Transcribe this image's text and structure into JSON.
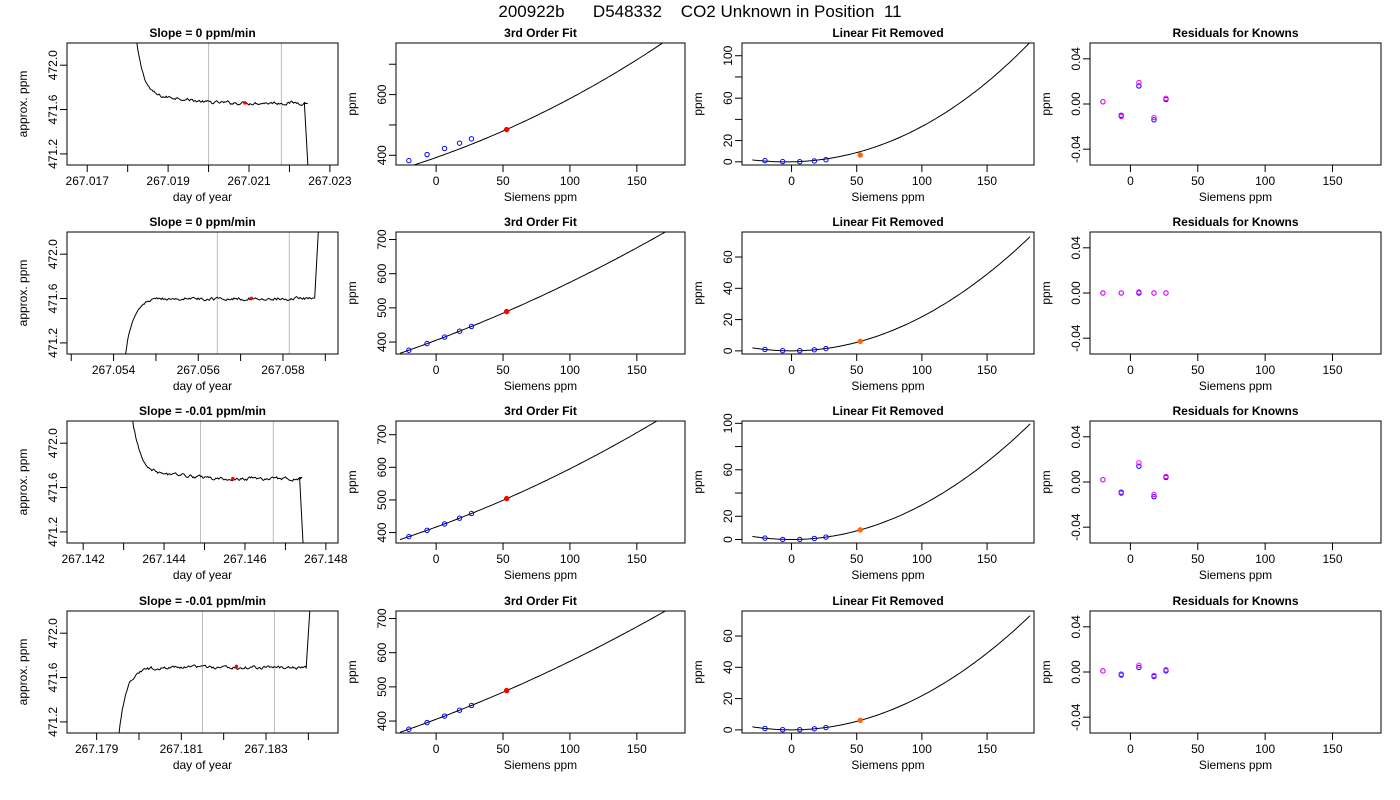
{
  "header": {
    "title": "200922b      D548332    CO2 Unknown in Position  11"
  },
  "colors": {
    "curve": "#000000",
    "known_points": "#0000ff",
    "unknown_point": "#ff0000",
    "unknown_point_residual_panel": "#ff6600",
    "residual_points_a": "#0000ff",
    "residual_points_b": "#ff00ff",
    "vlines": "#bebebe"
  },
  "chart_data": [
    {
      "type": "line",
      "row": 0,
      "col": 0,
      "title": "Slope =  0  ppm/min",
      "xlabel": "day of year",
      "ylabel": "approx. ppm",
      "xlim": [
        267.0165,
        267.0232
      ],
      "ylim": [
        471.1,
        472.2
      ],
      "xticks": [
        267.017,
        267.019,
        267.021,
        267.023
      ],
      "xtick_labels": [
        "267.017",
        "267.019",
        "267.021",
        "267.023"
      ],
      "xminor": [
        267.018,
        267.02,
        267.022
      ],
      "yticks": [
        471.2,
        471.6,
        472.0
      ],
      "ytick_labels": [
        "471.2",
        "471.6",
        "472.0"
      ],
      "vlines": [
        267.02,
        267.0218
      ],
      "marker": {
        "x": 267.0209,
        "y": 471.66
      },
      "trace": {
        "shape": "decay",
        "x_start": 267.0182,
        "x_end": 267.02245,
        "level": 471.66,
        "start_value": 472.25,
        "tau": 0.00022,
        "bump": 0.04,
        "end_drop": {
          "x0": 267.02237,
          "x1": 267.02247,
          "y": 471.0
        }
      }
    },
    {
      "type": "line",
      "row": 0,
      "col": 1,
      "title": "3rd Order Fit",
      "xlabel": "Siemens ppm",
      "ylabel": "ppm",
      "xlim": [
        -30,
        186
      ],
      "ylim": [
        368,
        770
      ],
      "xticks": [
        0,
        50,
        100,
        150
      ],
      "xtick_labels": [
        "0",
        "50",
        "100",
        "150"
      ],
      "yticks": [
        400,
        500,
        600,
        700
      ],
      "ytick_labels": [
        "400",
        "",
        "600",
        ""
      ],
      "curve": {
        "x_from": -27,
        "x_to": 183,
        "coef": [
          392.72,
          1.5548,
          0.003684,
          1.8e-06
        ]
      },
      "known_points": {
        "x": [
          -20.4,
          -6.8,
          6.3,
          17.5,
          26.4
        ],
        "y": [
          382.5,
          402.4,
          422.5,
          440.0,
          454.2
        ]
      },
      "unknown_point": {
        "x": 52.7,
        "y": 484.9
      }
    },
    {
      "type": "line",
      "row": 0,
      "col": 2,
      "title": "Linear Fit Removed",
      "xlabel": "Siemens ppm",
      "ylabel": "ppm",
      "xlim": [
        -38,
        186
      ],
      "ylim": [
        -3,
        112
      ],
      "xticks": [
        0,
        50,
        100,
        150
      ],
      "xtick_labels": [
        "0",
        "50",
        "100",
        "150"
      ],
      "yticks": [
        0,
        20,
        40,
        60,
        80,
        100
      ],
      "ytick_labels": [
        "0",
        "20",
        "",
        "60",
        "",
        "100"
      ],
      "curve": {
        "x_from": -30,
        "x_to": 183,
        "coef": [
          0.0,
          0.025,
          0.0029,
          1.8e-06
        ]
      },
      "known_points": {
        "x": [
          -20.4,
          -6.8,
          6.3,
          17.5,
          26.4
        ],
        "y": [
          1.1,
          0.2,
          0.1,
          0.8,
          2.0
        ]
      },
      "unknown_point": {
        "x": 52.7,
        "y": 6.4
      }
    },
    {
      "type": "scatter",
      "row": 0,
      "col": 3,
      "title": "Residuals for Knowns",
      "xlabel": "Siemens ppm",
      "ylabel": "ppm",
      "xlim": [
        -30,
        186
      ],
      "ylim": [
        -0.054,
        0.054
      ],
      "xticks": [
        0,
        50,
        100,
        150
      ],
      "xtick_labels": [
        "0",
        "50",
        "100",
        "150"
      ],
      "yticks": [
        -0.04,
        0.0,
        0.04
      ],
      "ytick_labels": [
        "-0.04",
        "0.00",
        "0.04"
      ],
      "points_a": {
        "x": [
          -20.4,
          -6.8,
          6.3,
          17.5,
          26.4
        ],
        "y": [
          0.002,
          -0.01,
          0.016,
          -0.014,
          0.004
        ]
      },
      "points_b": {
        "x": [
          -20.4,
          -6.8,
          6.3,
          17.5,
          26.4
        ],
        "y": [
          0.002,
          -0.011,
          0.019,
          -0.012,
          0.005
        ]
      }
    },
    {
      "type": "line",
      "row": 1,
      "col": 0,
      "title": "Slope =  0  ppm/min",
      "xlabel": "day of year",
      "ylabel": "approx. ppm",
      "xlim": [
        267.0529,
        267.0593
      ],
      "ylim": [
        471.1,
        472.2
      ],
      "xticks": [
        267.054,
        267.056,
        267.058
      ],
      "xtick_labels": [
        "267.054",
        "267.056",
        "267.058"
      ],
      "xminor": [
        267.053,
        267.055,
        267.057,
        267.059
      ],
      "yticks": [
        471.2,
        471.6,
        472.0
      ],
      "ytick_labels": [
        "471.2",
        "471.6",
        "472.0"
      ],
      "vlines": [
        267.05645,
        267.05815
      ],
      "marker": {
        "x": 267.05725,
        "y": 471.6
      },
      "trace": {
        "shape": "rise",
        "x_start": 267.05425,
        "x_end": 267.05875,
        "level": 471.6,
        "start_value": 471.0,
        "tau": 0.00018,
        "bump": 0.0,
        "end_rise": {
          "x0": 267.05875,
          "x1": 267.05885,
          "y": 472.3
        }
      }
    },
    {
      "type": "line",
      "row": 1,
      "col": 1,
      "title": "3rd Order Fit",
      "xlabel": "Siemens ppm",
      "ylabel": "ppm",
      "xlim": [
        -30,
        186
      ],
      "ylim": [
        365,
        722
      ],
      "xticks": [
        0,
        50,
        100,
        150
      ],
      "xtick_labels": [
        "0",
        "50",
        "100",
        "150"
      ],
      "yticks": [
        400,
        500,
        600,
        700
      ],
      "ytick_labels": [
        "400",
        "500",
        "600",
        "700"
      ],
      "curve": {
        "x_from": -27,
        "x_to": 183,
        "coef": [
          405.24,
          1.4758,
          0.002184,
          0.0
        ]
      },
      "known_points": {
        "x": [
          -20.4,
          -6.8,
          6.3,
          17.5,
          26.4
        ],
        "y": [
          376.0,
          395.5,
          414.6,
          431.7,
          445.7
        ]
      },
      "unknown_point": {
        "x": 52.7,
        "y": 489.1
      }
    },
    {
      "type": "line",
      "row": 1,
      "col": 2,
      "title": "Linear Fit Removed",
      "xlabel": "Siemens ppm",
      "ylabel": "ppm",
      "xlim": [
        -38,
        186
      ],
      "ylim": [
        -2,
        76
      ],
      "xticks": [
        0,
        50,
        100,
        150
      ],
      "xtick_labels": [
        "0",
        "50",
        "100",
        "150"
      ],
      "yticks": [
        0,
        20,
        40,
        60
      ],
      "ytick_labels": [
        "0",
        "20",
        "40",
        "60"
      ],
      "curve": {
        "x_from": -30,
        "x_to": 183,
        "coef": [
          0.0,
          0.0,
          0.00218,
          0.0
        ]
      },
      "known_points": {
        "x": [
          -20.4,
          -6.8,
          6.3,
          17.5,
          26.4
        ],
        "y": [
          0.9,
          0.1,
          0.1,
          0.7,
          1.5
        ]
      },
      "unknown_point": {
        "x": 52.7,
        "y": 6.1
      }
    },
    {
      "type": "scatter",
      "row": 1,
      "col": 3,
      "title": "Residuals for Knowns",
      "xlabel": "Siemens ppm",
      "ylabel": "ppm",
      "xlim": [
        -30,
        186
      ],
      "ylim": [
        -0.054,
        0.054
      ],
      "xticks": [
        0,
        50,
        100,
        150
      ],
      "xtick_labels": [
        "0",
        "50",
        "100",
        "150"
      ],
      "yticks": [
        -0.04,
        0.0,
        0.04
      ],
      "ytick_labels": [
        "-0.04",
        "0.00",
        "0.04"
      ],
      "points_a": {
        "x": [
          -20.4,
          -6.8,
          6.3,
          17.5,
          26.4
        ],
        "y": [
          0.0,
          0.0,
          0.0,
          0.0,
          0.0
        ]
      },
      "points_b": {
        "x": [
          -20.4,
          -6.8,
          6.3,
          17.5,
          26.4
        ],
        "y": [
          0.0,
          0.0,
          0.001,
          0.0,
          0.0
        ]
      }
    },
    {
      "type": "line",
      "row": 2,
      "col": 0,
      "title": "Slope =  -0.01  ppm/min",
      "xlabel": "day of year",
      "ylabel": "approx. ppm",
      "xlim": [
        267.1416,
        267.1483
      ],
      "ylim": [
        471.1,
        472.2
      ],
      "xticks": [
        267.142,
        267.144,
        267.146,
        267.148
      ],
      "xtick_labels": [
        "267.142",
        "267.144",
        "267.146",
        "267.148"
      ],
      "xminor": [
        267.143,
        267.145,
        267.147
      ],
      "yticks": [
        471.2,
        471.6,
        472.0
      ],
      "ytick_labels": [
        "471.2",
        "471.6",
        "472.0"
      ],
      "vlines": [
        267.1449,
        267.1467
      ],
      "marker": {
        "x": 267.1457,
        "y": 471.68
      },
      "trace": {
        "shape": "decay",
        "x_start": 267.1432,
        "x_end": 267.1474,
        "level": 471.68,
        "start_value": 472.25,
        "tau": 0.00024,
        "bump": 0.03,
        "end_drop": {
          "x0": 267.14735,
          "x1": 267.14745,
          "y": 471.0
        }
      }
    },
    {
      "type": "line",
      "row": 2,
      "col": 1,
      "title": "3rd Order Fit",
      "xlabel": "Siemens ppm",
      "ylabel": "ppm",
      "xlim": [
        -30,
        186
      ],
      "ylim": [
        368,
        742
      ],
      "xticks": [
        0,
        50,
        100,
        150
      ],
      "xtick_labels": [
        "0",
        "50",
        "100",
        "150"
      ],
      "yticks": [
        400,
        500,
        600,
        700
      ],
      "ytick_labels": [
        "400",
        "500",
        "600",
        "700"
      ],
      "curve": {
        "x_from": -27,
        "x_to": 183,
        "coef": [
          416.95,
          1.4985,
          0.00287,
          0.0
        ]
      },
      "known_points": {
        "x": [
          -20.4,
          -6.8,
          6.3,
          17.5,
          26.4
        ],
        "y": [
          387.6,
          406.8,
          426.4,
          444.1,
          458.5
        ]
      },
      "unknown_point": {
        "x": 52.7,
        "y": 504.1
      }
    },
    {
      "type": "line",
      "row": 2,
      "col": 2,
      "title": "Linear Fit Removed",
      "xlabel": "Siemens ppm",
      "ylabel": "ppm",
      "xlim": [
        -38,
        186
      ],
      "ylim": [
        -3,
        102
      ],
      "xticks": [
        0,
        50,
        100,
        150
      ],
      "xtick_labels": [
        "0",
        "50",
        "100",
        "150"
      ],
      "yticks": [
        0,
        20,
        40,
        60,
        80,
        100
      ],
      "ytick_labels": [
        "0",
        "20",
        "",
        "60",
        "",
        "100"
      ],
      "curve": {
        "x_from": -30,
        "x_to": 183,
        "coef": [
          0.0,
          0.0,
          0.00297,
          0.0
        ]
      },
      "known_points": {
        "x": [
          -20.4,
          -6.8,
          6.3,
          17.5,
          26.4
        ],
        "y": [
          1.2,
          0.1,
          0.1,
          0.9,
          2.1
        ]
      },
      "unknown_point": {
        "x": 52.7,
        "y": 8.3
      }
    },
    {
      "type": "scatter",
      "row": 2,
      "col": 3,
      "title": "Residuals for Knowns",
      "xlabel": "Siemens ppm",
      "ylabel": "ppm",
      "xlim": [
        -30,
        186
      ],
      "ylim": [
        -0.054,
        0.054
      ],
      "xticks": [
        0,
        50,
        100,
        150
      ],
      "xtick_labels": [
        "0",
        "50",
        "100",
        "150"
      ],
      "yticks": [
        -0.04,
        0.0,
        0.04
      ],
      "ytick_labels": [
        "-0.04",
        "0.00",
        "0.04"
      ],
      "points_a": {
        "x": [
          -20.4,
          -6.8,
          6.3,
          17.5,
          26.4
        ],
        "y": [
          0.002,
          -0.009,
          0.014,
          -0.013,
          0.004
        ]
      },
      "points_b": {
        "x": [
          -20.4,
          -6.8,
          6.3,
          17.5,
          26.4
        ],
        "y": [
          0.002,
          -0.01,
          0.017,
          -0.011,
          0.005
        ]
      }
    },
    {
      "type": "line",
      "row": 3,
      "col": 0,
      "title": "Slope =  -0.01  ppm/min",
      "xlabel": "day of year",
      "ylabel": "approx. ppm",
      "xlim": [
        267.1783,
        267.1847
      ],
      "ylim": [
        471.1,
        472.2
      ],
      "xticks": [
        267.179,
        267.181,
        267.183
      ],
      "xtick_labels": [
        "267.179",
        "267.181",
        "267.183"
      ],
      "xminor": [
        267.18,
        267.182,
        267.184
      ],
      "yticks": [
        471.2,
        471.6,
        472.0
      ],
      "ytick_labels": [
        "471.2",
        "471.6",
        "472.0"
      ],
      "vlines": [
        267.1815,
        267.1832
      ],
      "marker": {
        "x": 267.1823,
        "y": 471.7
      },
      "trace": {
        "shape": "rise",
        "x_start": 267.1795,
        "x_end": 267.18395,
        "level": 471.69,
        "start_value": 471.0,
        "tau": 0.00018,
        "bump": 0.0,
        "end_rise": {
          "x0": 267.18395,
          "x1": 267.18405,
          "y": 472.3
        }
      }
    },
    {
      "type": "line",
      "row": 3,
      "col": 1,
      "title": "3rd Order Fit",
      "xlabel": "Siemens ppm",
      "ylabel": "ppm",
      "xlim": [
        -30,
        186
      ],
      "ylim": [
        365,
        722
      ],
      "xticks": [
        0,
        50,
        100,
        150
      ],
      "xtick_labels": [
        "0",
        "50",
        "100",
        "150"
      ],
      "yticks": [
        400,
        500,
        600,
        700
      ],
      "ytick_labels": [
        "400",
        "500",
        "600",
        "700"
      ],
      "curve": {
        "x_from": -27,
        "x_to": 183,
        "coef": [
          405.24,
          1.4758,
          0.002184,
          0.0
        ]
      },
      "known_points": {
        "x": [
          -20.4,
          -6.8,
          6.3,
          17.5,
          26.4
        ],
        "y": [
          376.0,
          395.5,
          414.6,
          431.7,
          445.7
        ]
      },
      "unknown_point": {
        "x": 52.7,
        "y": 489.1
      }
    },
    {
      "type": "line",
      "row": 3,
      "col": 2,
      "title": "Linear Fit Removed",
      "xlabel": "Siemens ppm",
      "ylabel": "ppm",
      "xlim": [
        -38,
        186
      ],
      "ylim": [
        -2,
        76
      ],
      "xticks": [
        0,
        50,
        100,
        150
      ],
      "xtick_labels": [
        "0",
        "50",
        "100",
        "150"
      ],
      "yticks": [
        0,
        20,
        40,
        60
      ],
      "ytick_labels": [
        "0",
        "20",
        "40",
        "60"
      ],
      "curve": {
        "x_from": -30,
        "x_to": 183,
        "coef": [
          0.0,
          0.0,
          0.00218,
          0.0
        ]
      },
      "known_points": {
        "x": [
          -20.4,
          -6.8,
          6.3,
          17.5,
          26.4
        ],
        "y": [
          0.9,
          0.1,
          0.1,
          0.7,
          1.5
        ]
      },
      "unknown_point": {
        "x": 52.7,
        "y": 6.1
      }
    },
    {
      "type": "scatter",
      "row": 3,
      "col": 3,
      "title": "Residuals for Knowns",
      "xlabel": "Siemens ppm",
      "ylabel": "ppm",
      "xlim": [
        -30,
        186
      ],
      "ylim": [
        -0.054,
        0.054
      ],
      "xticks": [
        0,
        50,
        100,
        150
      ],
      "xtick_labels": [
        "0",
        "50",
        "100",
        "150"
      ],
      "yticks": [
        -0.04,
        0.0,
        0.04
      ],
      "ytick_labels": [
        "-0.04",
        "0.00",
        "0.04"
      ],
      "points_a": {
        "x": [
          -20.4,
          -6.8,
          6.3,
          17.5,
          26.4
        ],
        "y": [
          0.001,
          -0.002,
          0.004,
          -0.004,
          0.001
        ]
      },
      "points_b": {
        "x": [
          -20.4,
          -6.8,
          6.3,
          17.5,
          26.4
        ],
        "y": [
          0.001,
          -0.003,
          0.006,
          -0.003,
          0.002
        ]
      }
    }
  ]
}
